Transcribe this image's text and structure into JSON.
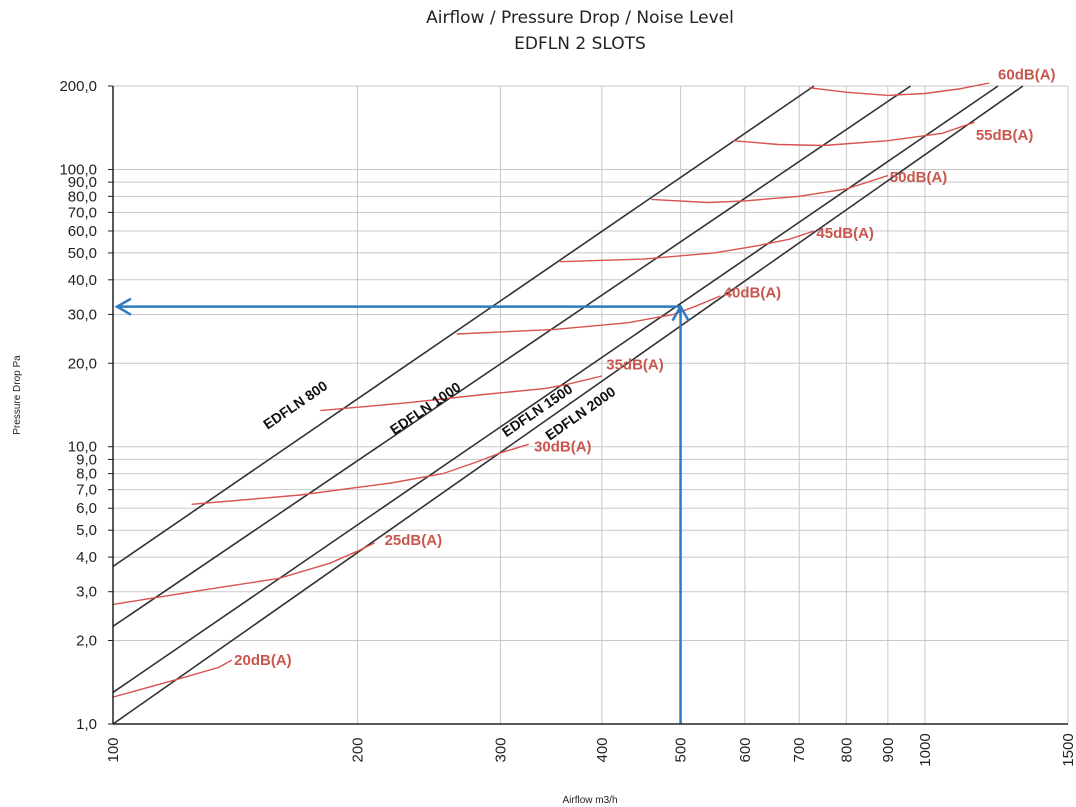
{
  "chart_data": {
    "type": "line",
    "title": "Airflow / Pressure Drop / Noise Level",
    "subtitle": "EDFLN 2 SLOTS",
    "xlabel": "Airflow m3/h",
    "ylabel": "Pressure Drop Pa",
    "x_scale": "log",
    "y_scale": "log",
    "xlim": [
      100,
      1500
    ],
    "ylim": [
      1,
      200
    ],
    "grid": true,
    "x_ticks": [
      {
        "value": 100,
        "label": "100"
      },
      {
        "value": 200,
        "label": "200"
      },
      {
        "value": 300,
        "label": "300"
      },
      {
        "value": 400,
        "label": "400"
      },
      {
        "value": 500,
        "label": "500"
      },
      {
        "value": 600,
        "label": "600"
      },
      {
        "value": 700,
        "label": "700"
      },
      {
        "value": 800,
        "label": "800"
      },
      {
        "value": 900,
        "label": "900"
      },
      {
        "value": 1000,
        "label": "1000"
      },
      {
        "value": 1500,
        "label": "1500"
      }
    ],
    "y_ticks": [
      {
        "value": 1,
        "label": "1,0"
      },
      {
        "value": 2,
        "label": "2,0"
      },
      {
        "value": 3,
        "label": "3,0"
      },
      {
        "value": 4,
        "label": "4,0"
      },
      {
        "value": 5,
        "label": "5,0"
      },
      {
        "value": 6,
        "label": "6,0"
      },
      {
        "value": 7,
        "label": "7,0"
      },
      {
        "value": 8,
        "label": "8,0"
      },
      {
        "value": 9,
        "label": "9,0"
      },
      {
        "value": 10,
        "label": "10,0"
      },
      {
        "value": 20,
        "label": "20,0"
      },
      {
        "value": 30,
        "label": "30,0"
      },
      {
        "value": 40,
        "label": "40,0"
      },
      {
        "value": 50,
        "label": "50,0"
      },
      {
        "value": 60,
        "label": "60,0"
      },
      {
        "value": 70,
        "label": "70,0"
      },
      {
        "value": 80,
        "label": "80,0"
      },
      {
        "value": 90,
        "label": "90,0"
      },
      {
        "value": 100,
        "label": "100,0"
      },
      {
        "value": 200,
        "label": "200,0"
      }
    ],
    "series": [
      {
        "name": "EDFLN 800",
        "x": [
          100,
          730
        ],
        "y": [
          3.7,
          200
        ],
        "label_at": [
          155,
          11.5
        ]
      },
      {
        "name": "EDFLN 1000",
        "x": [
          100,
          960
        ],
        "y": [
          2.25,
          200
        ],
        "label_at": [
          222,
          11.0
        ]
      },
      {
        "name": "EDFLN 1500",
        "x": [
          100,
          1230
        ],
        "y": [
          1.3,
          200
        ],
        "label_at": [
          305,
          10.8
        ]
      },
      {
        "name": "EDFLN 2000",
        "x": [
          100,
          1320
        ],
        "y": [
          1.0,
          200
        ],
        "label_at": [
          345,
          10.5
        ]
      }
    ],
    "noise_curves": [
      {
        "name": "20dB(A)",
        "x": [
          100,
          120,
          135,
          140
        ],
        "y": [
          1.25,
          1.45,
          1.6,
          1.7
        ],
        "label_at": [
          141,
          1.7
        ]
      },
      {
        "name": "25dB(A)",
        "x": [
          100,
          130,
          160,
          185,
          200,
          210
        ],
        "y": [
          2.7,
          3.05,
          3.35,
          3.8,
          4.2,
          4.5
        ],
        "label_at": [
          216,
          4.6
        ]
      },
      {
        "name": "30dB(A)",
        "x": [
          125,
          170,
          220,
          255,
          280,
          300,
          325
        ],
        "y": [
          6.2,
          6.7,
          7.4,
          8.0,
          8.8,
          9.5,
          10.2
        ],
        "label_at": [
          330,
          10.0
        ]
      },
      {
        "name": "35dB(A)",
        "x": [
          180,
          230,
          290,
          340,
          360,
          400
        ],
        "y": [
          13.5,
          14.4,
          15.5,
          16.2,
          16.7,
          18.0
        ],
        "label_at": [
          405,
          19.8
        ]
      },
      {
        "name": "40dB(A)",
        "x": [
          265,
          350,
          430,
          490,
          520,
          560
        ],
        "y": [
          25.5,
          26.5,
          28.0,
          30.0,
          32.0,
          35.0
        ],
        "label_at": [
          565,
          36.0
        ]
      },
      {
        "name": "45dB(A)",
        "x": [
          355,
          450,
          550,
          620,
          680,
          730
        ],
        "y": [
          46.5,
          47.5,
          50.0,
          53.0,
          56.0,
          60.0
        ],
        "label_at": [
          735,
          59.0
        ]
      },
      {
        "name": "50dB(A)",
        "x": [
          460,
          540,
          600,
          700,
          800,
          900
        ],
        "y": [
          78.0,
          76.0,
          77.0,
          80.0,
          85.0,
          95.0
        ],
        "label_at": [
          905,
          94.0
        ]
      },
      {
        "name": "55dB(A)",
        "x": [
          580,
          660,
          750,
          900,
          1050,
          1150
        ],
        "y": [
          127.0,
          123.0,
          122.0,
          127.0,
          135.0,
          148.0
        ],
        "label_at": [
          1155,
          133.0
        ]
      },
      {
        "name": "60dB(A)",
        "x": [
          720,
          800,
          900,
          1000,
          1100,
          1200
        ],
        "y": [
          197.0,
          190.0,
          185.0,
          188.0,
          195.0,
          205.0
        ],
        "label_at": [
          1230,
          220.0
        ]
      }
    ],
    "annotation": {
      "description_arrow_point": {
        "x": 500,
        "y": 32
      },
      "color": "#2f7ac0"
    },
    "colors": {
      "grid": "#c8c8c8",
      "series_line": "#333333",
      "noise_curve": "#d9534f",
      "noise_label": "#c9574f",
      "arrow": "#2f7ac0"
    }
  }
}
